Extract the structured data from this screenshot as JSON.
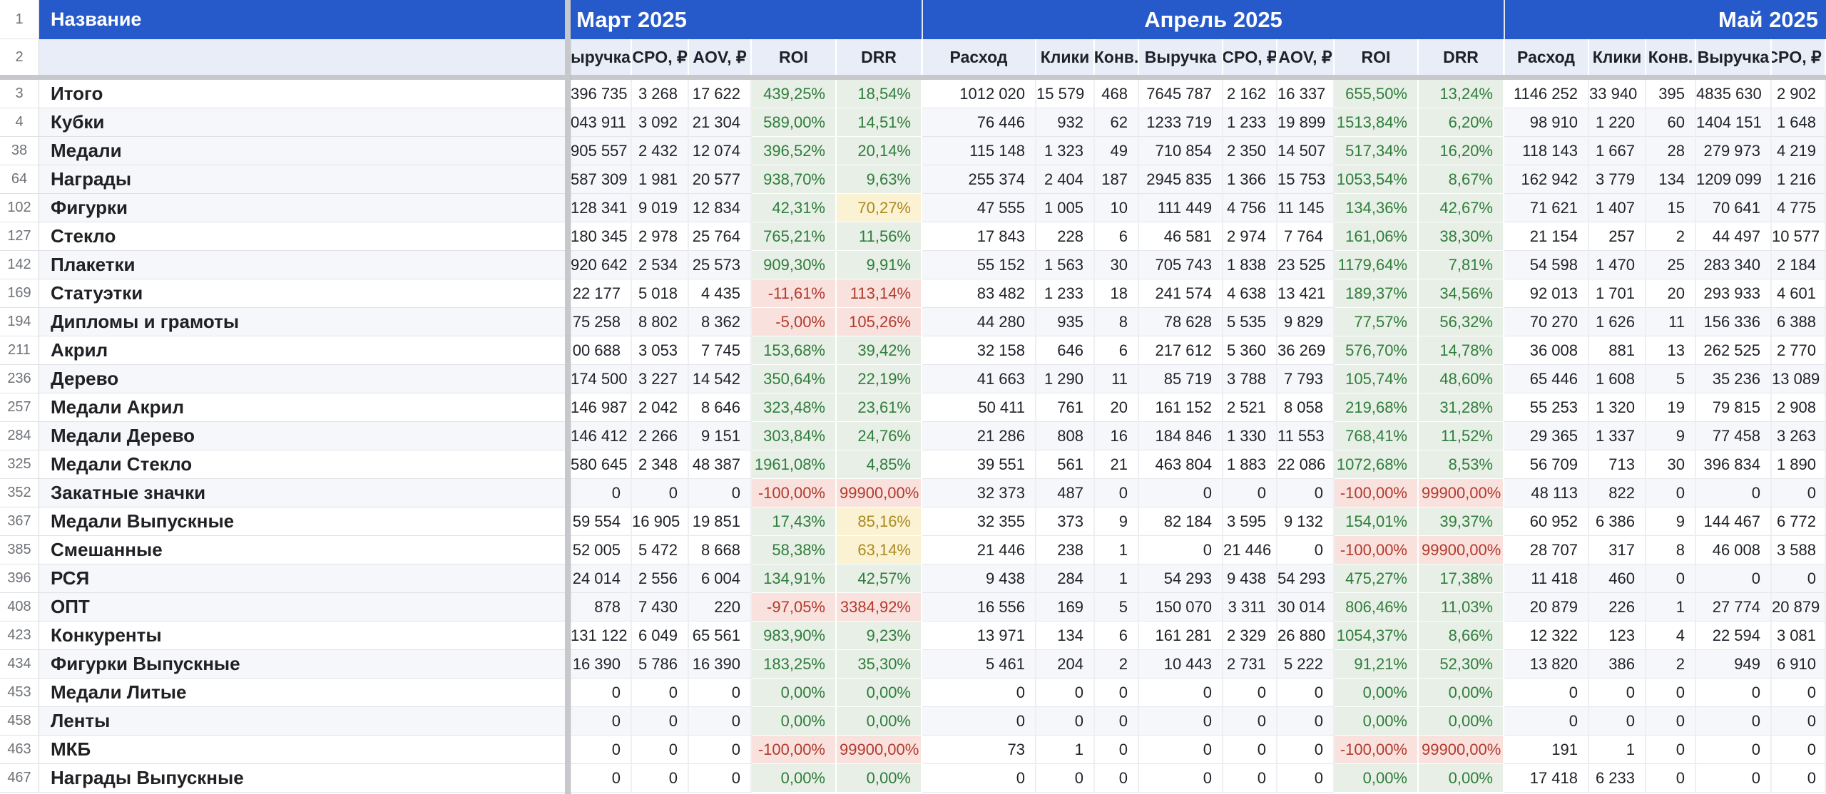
{
  "colors": {
    "header_blue": "#2659C9",
    "header2_bg": "#E8EDF8",
    "band_row_bg": "#F5F7FB",
    "green_bg": "#E7EFE6",
    "green_text": "#2F7D3B",
    "red_bg": "#F9E1DE",
    "red_text": "#B23A2B",
    "yellow_bg": "#FBF2D3",
    "yellow_text": "#AB8A1C",
    "frozen_divider": "#C6C8CB",
    "row_number_text": "#6E7277"
  },
  "sheet": {
    "row1_num": "1",
    "row2_num": "2",
    "name_header": "Название"
  },
  "months": [
    {
      "label": "Март 2025"
    },
    {
      "label": "Апрель 2025"
    },
    {
      "label": "Май 2025"
    }
  ],
  "column_headers": [
    "ыручка",
    "CPO, ₽",
    "AOV, ₽",
    "ROI",
    "DRR",
    "Расход",
    "Клики",
    "Конв.",
    "Выручка",
    "CPO, ₽",
    "AOV, ₽",
    "ROI",
    "DRR",
    "Расход",
    "Клики",
    "Конв.",
    "Выручка",
    "CPO, ₽"
  ],
  "rows": [
    {
      "num": "3",
      "name": "Итого",
      "cells": [
        "396 735",
        "3 268",
        "17 622",
        "439,25%",
        "18,54%",
        "1012 020",
        "15 579",
        "468",
        "7645 787",
        "2 162",
        "16 337",
        "655,50%",
        "13,24%",
        "1146 252",
        "33 940",
        "395",
        "4835 630",
        "2 902"
      ],
      "pct": "gggg"
    },
    {
      "num": "4",
      "name": "Кубки",
      "cells": [
        "043 911",
        "3 092",
        "21 304",
        "589,00%",
        "14,51%",
        "76 446",
        "932",
        "62",
        "1233 719",
        "1 233",
        "19 899",
        "1513,84%",
        "6,20%",
        "98 910",
        "1 220",
        "60",
        "1404 151",
        "1 648"
      ],
      "pct": "gggg"
    },
    {
      "num": "38",
      "name": "Медали",
      "cells": [
        "905 557",
        "2 432",
        "12 074",
        "396,52%",
        "20,14%",
        "115 148",
        "1 323",
        "49",
        "710 854",
        "2 350",
        "14 507",
        "517,34%",
        "16,20%",
        "118 143",
        "1 667",
        "28",
        "279 973",
        "4 219"
      ],
      "pct": "gggg"
    },
    {
      "num": "64",
      "name": "Награды",
      "cells": [
        "587 309",
        "1 981",
        "20 577",
        "938,70%",
        "9,63%",
        "255 374",
        "2 404",
        "187",
        "2945 835",
        "1 366",
        "15 753",
        "1053,54%",
        "8,67%",
        "162 942",
        "3 779",
        "134",
        "1209 099",
        "1 216"
      ],
      "pct": "gggg"
    },
    {
      "num": "102",
      "name": "Фигурки",
      "cells": [
        "128 341",
        "9 019",
        "12 834",
        "42,31%",
        "70,27%",
        "47 555",
        "1 005",
        "10",
        "111 449",
        "4 756",
        "11 145",
        "134,36%",
        "42,67%",
        "71 621",
        "1 407",
        "15",
        "70 641",
        "4 775"
      ],
      "pct": "gygg"
    },
    {
      "num": "127",
      "name": "Стекло",
      "cells": [
        "180 345",
        "2 978",
        "25 764",
        "765,21%",
        "11,56%",
        "17 843",
        "228",
        "6",
        "46 581",
        "2 974",
        "7 764",
        "161,06%",
        "38,30%",
        "21 154",
        "257",
        "2",
        "44 497",
        "10 577"
      ],
      "pct": "gggg"
    },
    {
      "num": "142",
      "name": "Плакетки",
      "cells": [
        "920 642",
        "2 534",
        "25 573",
        "909,30%",
        "9,91%",
        "55 152",
        "1 563",
        "30",
        "705 743",
        "1 838",
        "23 525",
        "1179,64%",
        "7,81%",
        "54 598",
        "1 470",
        "25",
        "283 340",
        "2 184"
      ],
      "pct": "gggg"
    },
    {
      "num": "169",
      "name": "Статуэтки",
      "cells": [
        "22 177",
        "5 018",
        "4 435",
        "-11,61%",
        "113,14%",
        "83 482",
        "1 233",
        "18",
        "241 574",
        "4 638",
        "13 421",
        "189,37%",
        "34,56%",
        "92 013",
        "1 701",
        "20",
        "293 933",
        "4 601"
      ],
      "pct": "rrgg"
    },
    {
      "num": "194",
      "name": "Дипломы и грамоты",
      "cells": [
        "75 258",
        "8 802",
        "8 362",
        "-5,00%",
        "105,26%",
        "44 280",
        "935",
        "8",
        "78 628",
        "5 535",
        "9 829",
        "77,57%",
        "56,32%",
        "70 270",
        "1 626",
        "11",
        "156 336",
        "6 388"
      ],
      "pct": "rrgg"
    },
    {
      "num": "211",
      "name": "Акрил",
      "cells": [
        "00 688",
        "3 053",
        "7 745",
        "153,68%",
        "39,42%",
        "32 158",
        "646",
        "6",
        "217 612",
        "5 360",
        "36 269",
        "576,70%",
        "14,78%",
        "36 008",
        "881",
        "13",
        "262 525",
        "2 770"
      ],
      "pct": "gggg"
    },
    {
      "num": "236",
      "name": "Дерево",
      "cells": [
        "174 500",
        "3 227",
        "14 542",
        "350,64%",
        "22,19%",
        "41 663",
        "1 290",
        "11",
        "85 719",
        "3 788",
        "7 793",
        "105,74%",
        "48,60%",
        "65 446",
        "1 608",
        "5",
        "35 236",
        "13 089"
      ],
      "pct": "gggg"
    },
    {
      "num": "257",
      "name": "Медали Акрил",
      "cells": [
        "146 987",
        "2 042",
        "8 646",
        "323,48%",
        "23,61%",
        "50 411",
        "761",
        "20",
        "161 152",
        "2 521",
        "8 058",
        "219,68%",
        "31,28%",
        "55 253",
        "1 320",
        "19",
        "79 815",
        "2 908"
      ],
      "pct": "gggg"
    },
    {
      "num": "284",
      "name": "Медали Дерево",
      "cells": [
        "146 412",
        "2 266",
        "9 151",
        "303,84%",
        "24,76%",
        "21 286",
        "808",
        "16",
        "184 846",
        "1 330",
        "11 553",
        "768,41%",
        "11,52%",
        "29 365",
        "1 337",
        "9",
        "77 458",
        "3 263"
      ],
      "pct": "gggg"
    },
    {
      "num": "325",
      "name": "Медали Стекло",
      "cells": [
        "580 645",
        "2 348",
        "48 387",
        "1961,08%",
        "4,85%",
        "39 551",
        "561",
        "21",
        "463 804",
        "1 883",
        "22 086",
        "1072,68%",
        "8,53%",
        "56 709",
        "713",
        "30",
        "396 834",
        "1 890"
      ],
      "pct": "gggg"
    },
    {
      "num": "352",
      "name": "Закатные значки",
      "cells": [
        "0",
        "0",
        "0",
        "-100,00%",
        "99900,00%",
        "32 373",
        "487",
        "0",
        "0",
        "0",
        "0",
        "-100,00%",
        "99900,00%",
        "48 113",
        "822",
        "0",
        "0",
        "0"
      ],
      "pct": "rrrr"
    },
    {
      "num": "367",
      "name": "Медали Выпускные",
      "cells": [
        "59 554",
        "16 905",
        "19 851",
        "17,43%",
        "85,16%",
        "32 355",
        "373",
        "9",
        "82 184",
        "3 595",
        "9 132",
        "154,01%",
        "39,37%",
        "60 952",
        "6 386",
        "9",
        "144 467",
        "6 772"
      ],
      "pct": "gygg"
    },
    {
      "num": "385",
      "name": "Смешанные",
      "cells": [
        "52 005",
        "5 472",
        "8 668",
        "58,38%",
        "63,14%",
        "21 446",
        "238",
        "1",
        "0",
        "21 446",
        "0",
        "-100,00%",
        "99900,00%",
        "28 707",
        "317",
        "8",
        "46 008",
        "3 588"
      ],
      "pct": "gyrr"
    },
    {
      "num": "396",
      "name": "РСЯ",
      "cells": [
        "24 014",
        "2 556",
        "6 004",
        "134,91%",
        "42,57%",
        "9 438",
        "284",
        "1",
        "54 293",
        "9 438",
        "54 293",
        "475,27%",
        "17,38%",
        "11 418",
        "460",
        "0",
        "0",
        "0"
      ],
      "pct": "gggg"
    },
    {
      "num": "408",
      "name": "ОПТ",
      "cells": [
        "878",
        "7 430",
        "220",
        "-97,05%",
        "3384,92%",
        "16 556",
        "169",
        "5",
        "150 070",
        "3 311",
        "30 014",
        "806,46%",
        "11,03%",
        "20 879",
        "226",
        "1",
        "27 774",
        "20 879"
      ],
      "pct": "rrgg"
    },
    {
      "num": "423",
      "name": "Конкуренты",
      "cells": [
        "131 122",
        "6 049",
        "65 561",
        "983,90%",
        "9,23%",
        "13 971",
        "134",
        "6",
        "161 281",
        "2 329",
        "26 880",
        "1054,37%",
        "8,66%",
        "12 322",
        "123",
        "4",
        "22 594",
        "3 081"
      ],
      "pct": "gggg"
    },
    {
      "num": "434",
      "name": "Фигурки Выпускные",
      "cells": [
        "16 390",
        "5 786",
        "16 390",
        "183,25%",
        "35,30%",
        "5 461",
        "204",
        "2",
        "10 443",
        "2 731",
        "5 222",
        "91,21%",
        "52,30%",
        "13 820",
        "386",
        "2",
        "949",
        "6 910"
      ],
      "pct": "gggg"
    },
    {
      "num": "453",
      "name": "Медали Литые",
      "cells": [
        "0",
        "0",
        "0",
        "0,00%",
        "0,00%",
        "0",
        "0",
        "0",
        "0",
        "0",
        "0",
        "0,00%",
        "0,00%",
        "0",
        "0",
        "0",
        "0",
        "0"
      ],
      "pct": "gggg"
    },
    {
      "num": "458",
      "name": "Ленты",
      "cells": [
        "0",
        "0",
        "0",
        "0,00%",
        "0,00%",
        "0",
        "0",
        "0",
        "0",
        "0",
        "0",
        "0,00%",
        "0,00%",
        "0",
        "0",
        "0",
        "0",
        "0"
      ],
      "pct": "gggg"
    },
    {
      "num": "463",
      "name": "МКБ",
      "cells": [
        "0",
        "0",
        "0",
        "-100,00%",
        "99900,00%",
        "73",
        "1",
        "0",
        "0",
        "0",
        "0",
        "-100,00%",
        "99900,00%",
        "191",
        "1",
        "0",
        "0",
        "0"
      ],
      "pct": "rrrr"
    },
    {
      "num": "467",
      "name": "Награды Выпускные",
      "cells": [
        "0",
        "0",
        "0",
        "0,00%",
        "0,00%",
        "0",
        "0",
        "0",
        "0",
        "0",
        "0",
        "0,00%",
        "0,00%",
        "17 418",
        "6 233",
        "0",
        "0",
        "0"
      ],
      "pct": "gggg"
    }
  ]
}
